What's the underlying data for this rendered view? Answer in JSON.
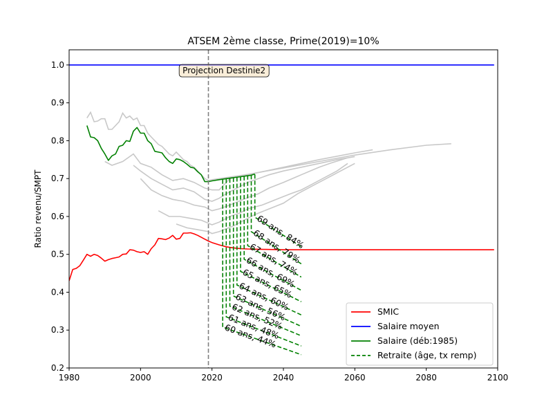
{
  "chart_data": {
    "type": "line",
    "title": "ATSEM 2ème classe, Prime(2019)=10%",
    "xlabel": "",
    "ylabel": "Ratio revenu/SMPT",
    "xlim": [
      1980,
      2100
    ],
    "ylim": [
      0.2,
      1.04
    ],
    "xticks": [
      "1980",
      "2000",
      "2020",
      "2040",
      "2060",
      "2080",
      "2100"
    ],
    "yticks": [
      "0.2",
      "0.3",
      "0.4",
      "0.5",
      "0.6",
      "0.7",
      "0.8",
      "0.9",
      "1.0"
    ],
    "grid": false,
    "legend_position": "lower-right",
    "vline": {
      "x": 2019,
      "color": "#808080",
      "style": "dashed"
    },
    "annotation_box": {
      "text": "Projection Destinie2",
      "x": 2023,
      "y": 0.985
    },
    "colors": {
      "smic": "#ff0000",
      "salaire_moyen": "#0000ff",
      "salaire": "#008000",
      "retraite": "#008000",
      "cohorts": "#c8c8c8"
    },
    "series": [
      {
        "name": "SMIC",
        "color": "#ff0000",
        "style": "solid",
        "points": [
          [
            1980,
            0.43
          ],
          [
            1981,
            0.46
          ],
          [
            1982,
            0.463
          ],
          [
            1983,
            0.47
          ],
          [
            1984,
            0.485
          ],
          [
            1985,
            0.5
          ],
          [
            1986,
            0.495
          ],
          [
            1987,
            0.5
          ],
          [
            1988,
            0.497
          ],
          [
            1989,
            0.49
          ],
          [
            1990,
            0.482
          ],
          [
            1991,
            0.486
          ],
          [
            1992,
            0.489
          ],
          [
            1993,
            0.491
          ],
          [
            1994,
            0.493
          ],
          [
            1995,
            0.5
          ],
          [
            1996,
            0.501
          ],
          [
            1997,
            0.512
          ],
          [
            1998,
            0.511
          ],
          [
            1999,
            0.507
          ],
          [
            2000,
            0.505
          ],
          [
            2001,
            0.507
          ],
          [
            2002,
            0.5
          ],
          [
            2003,
            0.515
          ],
          [
            2004,
            0.525
          ],
          [
            2005,
            0.542
          ],
          [
            2006,
            0.541
          ],
          [
            2007,
            0.539
          ],
          [
            2008,
            0.543
          ],
          [
            2009,
            0.55
          ],
          [
            2010,
            0.54
          ],
          [
            2011,
            0.542
          ],
          [
            2012,
            0.556
          ],
          [
            2013,
            0.556
          ],
          [
            2014,
            0.557
          ],
          [
            2015,
            0.554
          ],
          [
            2016,
            0.55
          ],
          [
            2017,
            0.545
          ],
          [
            2018,
            0.54
          ],
          [
            2019,
            0.535
          ],
          [
            2020,
            0.531
          ],
          [
            2022,
            0.525
          ],
          [
            2024,
            0.52
          ],
          [
            2026,
            0.517
          ],
          [
            2028,
            0.515
          ],
          [
            2030,
            0.514
          ],
          [
            2035,
            0.513
          ],
          [
            2040,
            0.512
          ],
          [
            2060,
            0.512
          ],
          [
            2080,
            0.512
          ],
          [
            2099,
            0.512
          ]
        ]
      },
      {
        "name": "Salaire moyen",
        "color": "#0000ff",
        "style": "solid",
        "points": [
          [
            1980,
            1.0
          ],
          [
            2099,
            1.0
          ]
        ]
      },
      {
        "name": "Salaire (déb:1985)",
        "color": "#008000",
        "style": "solid",
        "points": [
          [
            1985,
            0.84
          ],
          [
            1986,
            0.81
          ],
          [
            1987,
            0.808
          ],
          [
            1988,
            0.8
          ],
          [
            1989,
            0.78
          ],
          [
            1990,
            0.765
          ],
          [
            1991,
            0.748
          ],
          [
            1992,
            0.76
          ],
          [
            1993,
            0.765
          ],
          [
            1994,
            0.785
          ],
          [
            1995,
            0.788
          ],
          [
            1996,
            0.8
          ],
          [
            1997,
            0.798
          ],
          [
            1998,
            0.825
          ],
          [
            1999,
            0.835
          ],
          [
            2000,
            0.82
          ],
          [
            2001,
            0.82
          ],
          [
            2002,
            0.8
          ],
          [
            2003,
            0.792
          ],
          [
            2004,
            0.772
          ],
          [
            2005,
            0.77
          ],
          [
            2006,
            0.768
          ],
          [
            2007,
            0.755
          ],
          [
            2008,
            0.745
          ],
          [
            2009,
            0.74
          ],
          [
            2010,
            0.752
          ],
          [
            2011,
            0.75
          ],
          [
            2012,
            0.745
          ],
          [
            2013,
            0.738
          ],
          [
            2014,
            0.73
          ],
          [
            2015,
            0.728
          ],
          [
            2016,
            0.718
          ],
          [
            2017,
            0.71
          ],
          [
            2018,
            0.692
          ],
          [
            2019,
            0.692
          ],
          [
            2020,
            0.694
          ],
          [
            2022,
            0.697
          ],
          [
            2025,
            0.701
          ],
          [
            2028,
            0.705
          ],
          [
            2031,
            0.709
          ],
          [
            2032,
            0.712
          ]
        ]
      }
    ],
    "cohort_lines": [
      [
        [
          1985,
          0.86
        ],
        [
          1986,
          0.875
        ],
        [
          1987,
          0.85
        ],
        [
          1988,
          0.852
        ],
        [
          1989,
          0.858
        ],
        [
          1990,
          0.858
        ],
        [
          1991,
          0.83
        ],
        [
          1992,
          0.83
        ],
        [
          1993,
          0.84
        ],
        [
          1994,
          0.85
        ],
        [
          1995,
          0.873
        ],
        [
          1996,
          0.86
        ],
        [
          1997,
          0.865
        ],
        [
          1998,
          0.855
        ],
        [
          1999,
          0.86
        ],
        [
          2000,
          0.84
        ],
        [
          2001,
          0.84
        ],
        [
          2002,
          0.82
        ],
        [
          2003,
          0.81
        ],
        [
          2004,
          0.8
        ],
        [
          2005,
          0.79
        ],
        [
          2006,
          0.785
        ],
        [
          2007,
          0.775
        ],
        [
          2008,
          0.765
        ],
        [
          2009,
          0.76
        ],
        [
          2010,
          0.77
        ],
        [
          2011,
          0.76
        ],
        [
          2012,
          0.75
        ],
        [
          2013,
          0.745
        ],
        [
          2014,
          0.735
        ],
        [
          2015,
          0.73
        ],
        [
          2016,
          0.72
        ],
        [
          2017,
          0.71
        ],
        [
          2018,
          0.7
        ],
        [
          2019,
          0.695
        ],
        [
          2020,
          0.697
        ],
        [
          2030,
          0.711
        ],
        [
          2040,
          0.728
        ],
        [
          2050,
          0.745
        ],
        [
          2060,
          0.762
        ],
        [
          2070,
          0.776
        ],
        [
          2080,
          0.788
        ],
        [
          2087,
          0.792
        ]
      ],
      [
        [
          1990,
          0.745
        ],
        [
          1992,
          0.735
        ],
        [
          1995,
          0.745
        ],
        [
          1998,
          0.765
        ],
        [
          2000,
          0.74
        ],
        [
          2003,
          0.73
        ],
        [
          2006,
          0.71
        ],
        [
          2009,
          0.695
        ],
        [
          2012,
          0.7
        ],
        [
          2015,
          0.69
        ],
        [
          2018,
          0.675
        ],
        [
          2020,
          0.67
        ],
        [
          2022,
          0.67
        ],
        [
          2024,
          0.69
        ],
        [
          2025,
          0.7
        ],
        [
          2030,
          0.71
        ],
        [
          2040,
          0.73
        ],
        [
          2050,
          0.75
        ],
        [
          2060,
          0.768
        ],
        [
          2065,
          0.776
        ]
      ],
      [
        [
          1998,
          0.735
        ],
        [
          2000,
          0.72
        ],
        [
          2003,
          0.7
        ],
        [
          2006,
          0.685
        ],
        [
          2009,
          0.67
        ],
        [
          2012,
          0.675
        ],
        [
          2015,
          0.665
        ],
        [
          2018,
          0.645
        ],
        [
          2020,
          0.64
        ],
        [
          2022,
          0.648
        ],
        [
          2024,
          0.66
        ],
        [
          2027,
          0.675
        ],
        [
          2030,
          0.69
        ],
        [
          2033,
          0.7
        ],
        [
          2036,
          0.71
        ],
        [
          2040,
          0.72
        ],
        [
          2045,
          0.73
        ],
        [
          2050,
          0.74
        ],
        [
          2055,
          0.75
        ],
        [
          2060,
          0.758
        ]
      ],
      [
        [
          2000,
          0.7
        ],
        [
          2003,
          0.67
        ],
        [
          2006,
          0.655
        ],
        [
          2009,
          0.645
        ],
        [
          2012,
          0.64
        ],
        [
          2015,
          0.63
        ],
        [
          2018,
          0.625
        ],
        [
          2020,
          0.615
        ],
        [
          2022,
          0.62
        ],
        [
          2025,
          0.63
        ],
        [
          2030,
          0.65
        ],
        [
          2033,
          0.66
        ],
        [
          2036,
          0.675
        ],
        [
          2040,
          0.69
        ],
        [
          2045,
          0.71
        ],
        [
          2050,
          0.73
        ],
        [
          2053,
          0.74
        ],
        [
          2058,
          0.755
        ]
      ],
      [
        [
          2005,
          0.615
        ],
        [
          2008,
          0.6
        ],
        [
          2011,
          0.6
        ],
        [
          2014,
          0.595
        ],
        [
          2017,
          0.59
        ],
        [
          2020,
          0.578
        ],
        [
          2022,
          0.585
        ],
        [
          2025,
          0.6
        ],
        [
          2028,
          0.61
        ],
        [
          2030,
          0.62
        ],
        [
          2034,
          0.63
        ],
        [
          2038,
          0.645
        ],
        [
          2042,
          0.66
        ],
        [
          2045,
          0.67
        ],
        [
          2048,
          0.685
        ],
        [
          2051,
          0.7
        ],
        [
          2055,
          0.72
        ],
        [
          2058,
          0.74
        ]
      ],
      [
        [
          2010,
          0.58
        ],
        [
          2013,
          0.57
        ],
        [
          2016,
          0.565
        ],
        [
          2019,
          0.56
        ],
        [
          2020,
          0.555
        ],
        [
          2022,
          0.56
        ],
        [
          2026,
          0.575
        ],
        [
          2029,
          0.59
        ],
        [
          2032,
          0.605
        ],
        [
          2036,
          0.62
        ],
        [
          2040,
          0.635
        ],
        [
          2044,
          0.66
        ],
        [
          2048,
          0.68
        ],
        [
          2052,
          0.7
        ],
        [
          2056,
          0.72
        ],
        [
          2060,
          0.74
        ]
      ]
    ],
    "retirement_lines": [
      {
        "label": "60 ans, 44%",
        "age": 60,
        "rate": 44,
        "start": [
          2023,
          0.697
        ],
        "drop": [
          2023,
          0.308
        ],
        "end": [
          2045,
          0.235
        ]
      },
      {
        "label": "61 ans, 48%",
        "age": 61,
        "rate": 48,
        "start": [
          2024,
          0.699
        ],
        "drop": [
          2024,
          0.335
        ],
        "end": [
          2045,
          0.258
        ]
      },
      {
        "label": "62 ans, 52%",
        "age": 62,
        "rate": 52,
        "start": [
          2025,
          0.7
        ],
        "drop": [
          2025,
          0.363
        ],
        "end": [
          2045,
          0.285
        ]
      },
      {
        "label": "63 ans, 56%",
        "age": 63,
        "rate": 56,
        "start": [
          2026,
          0.702
        ],
        "drop": [
          2026,
          0.39
        ],
        "end": [
          2045,
          0.31
        ]
      },
      {
        "label": "64 ans, 60%",
        "age": 64,
        "rate": 60,
        "start": [
          2027,
          0.703
        ],
        "drop": [
          2027,
          0.419
        ],
        "end": [
          2045,
          0.34
        ]
      },
      {
        "label": "65 ans, 65%",
        "age": 65,
        "rate": 65,
        "start": [
          2028,
          0.705
        ],
        "drop": [
          2028,
          0.455
        ],
        "end": [
          2045,
          0.375
        ]
      },
      {
        "label": "66 ans, 69%",
        "age": 66,
        "rate": 69,
        "start": [
          2029,
          0.706
        ],
        "drop": [
          2029,
          0.487
        ],
        "end": [
          2045,
          0.405
        ]
      },
      {
        "label": "67 ans, 74%",
        "age": 67,
        "rate": 74,
        "start": [
          2030,
          0.708
        ],
        "drop": [
          2030,
          0.523
        ],
        "end": [
          2045,
          0.44
        ]
      },
      {
        "label": "68 ans, 79%",
        "age": 68,
        "rate": 79,
        "start": [
          2031,
          0.709
        ],
        "drop": [
          2031,
          0.56
        ],
        "end": [
          2045,
          0.475
        ]
      },
      {
        "label": "69 ans, 84%",
        "age": 69,
        "rate": 84,
        "start": [
          2032,
          0.711
        ],
        "drop": [
          2032,
          0.598
        ],
        "end": [
          2045,
          0.52
        ]
      }
    ],
    "legend": [
      {
        "label": "SMIC",
        "color": "#ff0000",
        "style": "solid"
      },
      {
        "label": "Salaire moyen",
        "color": "#0000ff",
        "style": "solid"
      },
      {
        "label": "Salaire (déb:1985)",
        "color": "#008000",
        "style": "solid"
      },
      {
        "label": "Retraite (âge, tx remp)",
        "color": "#008000",
        "style": "dashed"
      }
    ]
  }
}
